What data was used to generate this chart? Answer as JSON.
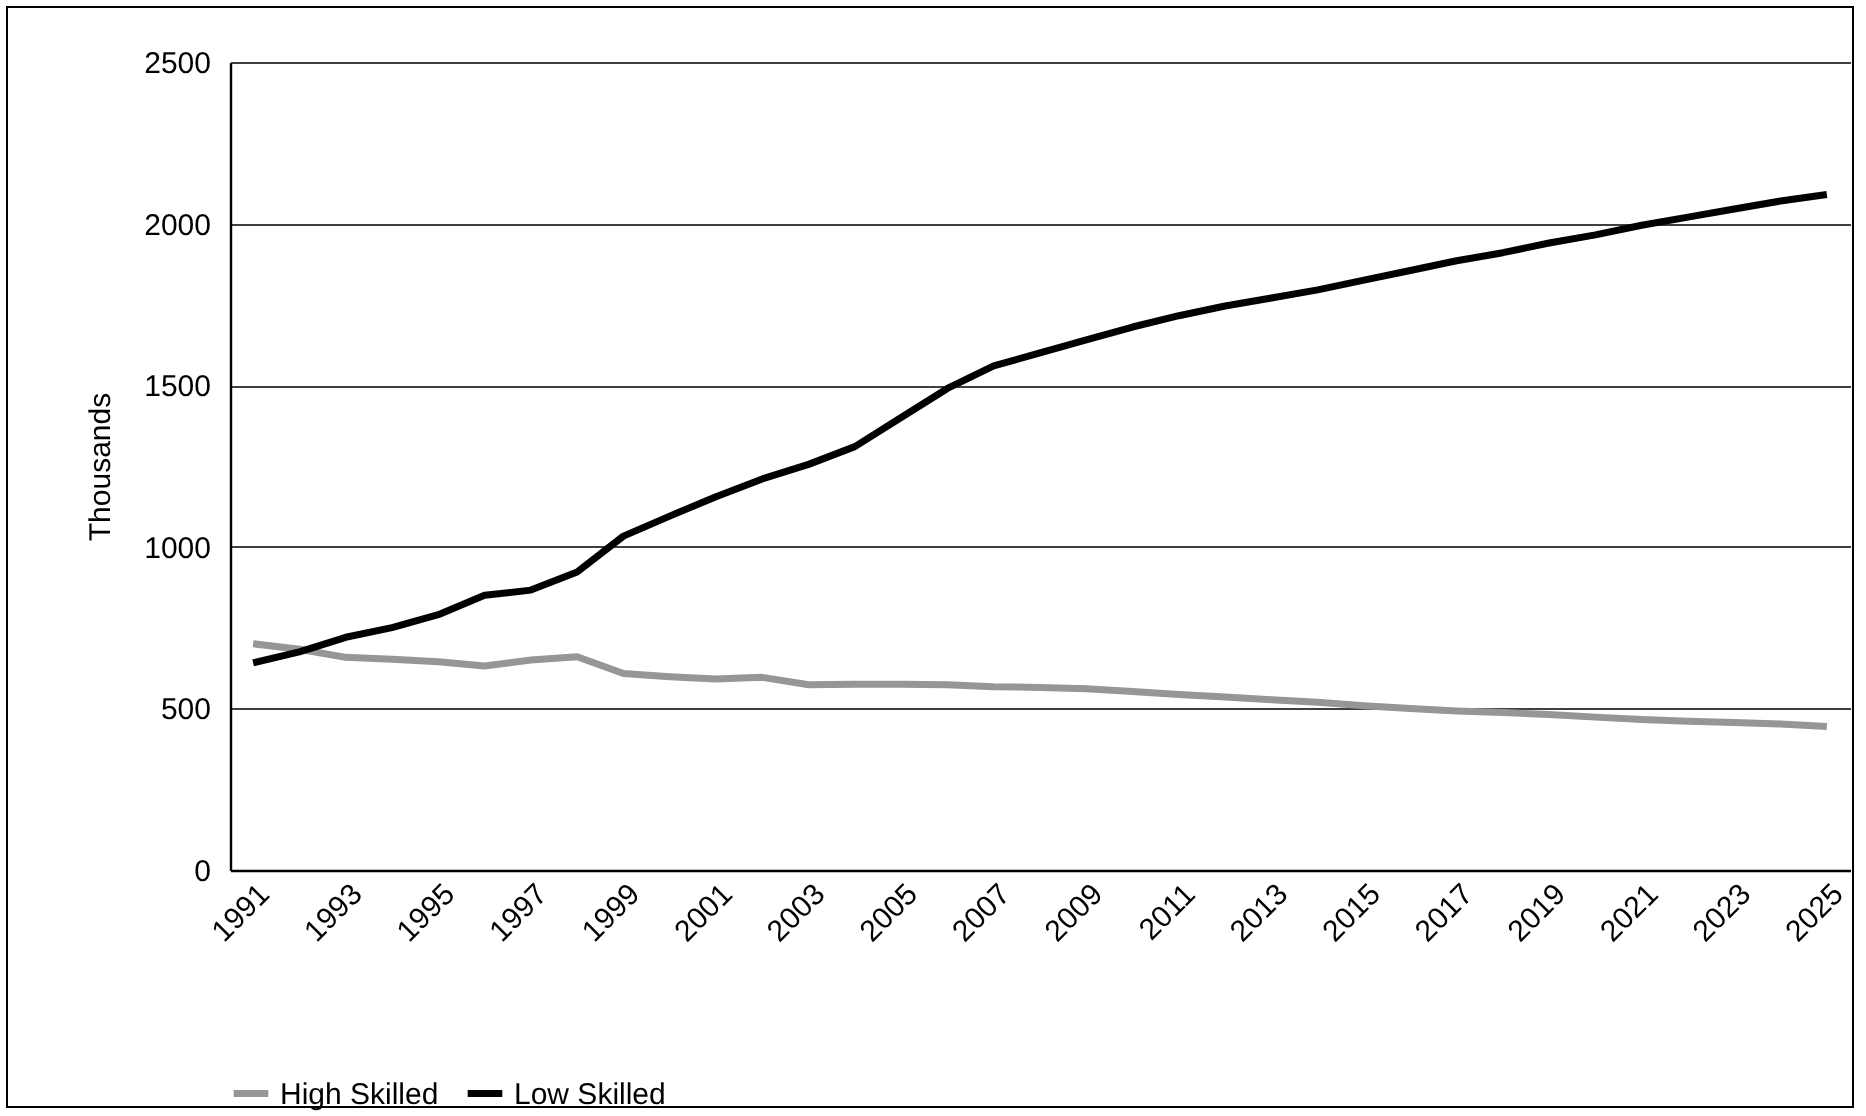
{
  "chart_data": {
    "type": "line",
    "ylabel": "Thousands",
    "categories": [
      "1991",
      null,
      "1993",
      null,
      "1995",
      null,
      "1997",
      null,
      "1999",
      null,
      "2001",
      null,
      "2003",
      null,
      "2005",
      null,
      "2007",
      null,
      "2009",
      null,
      "2011",
      null,
      "2013",
      null,
      "2015",
      null,
      "2017",
      null,
      "2019",
      null,
      "2021",
      null,
      "2023",
      null,
      "2025"
    ],
    "series": [
      {
        "name": "High Skilled",
        "color": "#969696",
        "values": [
          700,
          683,
          658,
          652,
          644,
          631,
          650,
          660,
          608,
          598,
          591,
          596,
          573,
          575,
          575,
          573,
          567,
          565,
          561,
          552,
          543,
          535,
          527,
          519,
          508,
          500,
          492,
          487,
          481,
          473,
          466,
          460,
          456,
          452,
          444
        ]
      },
      {
        "name": "Low Skilled",
        "color": "#000000",
        "values": [
          641,
          675,
          720,
          750,
          790,
          850,
          866,
          922,
          1033,
          1095,
          1155,
          1210,
          1255,
          1310,
          1400,
          1490,
          1560,
          1600,
          1640,
          1680,
          1715,
          1745,
          1770,
          1795,
          1825,
          1855,
          1885,
          1910,
          1940,
          1965,
          1995,
          2020,
          2045,
          2070,
          2090
        ]
      }
    ],
    "ylim": [
      0,
      2500
    ],
    "yticks": [
      0,
      500,
      1000,
      1500,
      2000,
      2500
    ],
    "grid": "y",
    "legend": "bottom",
    "marker": "none",
    "line_style": "solid"
  }
}
